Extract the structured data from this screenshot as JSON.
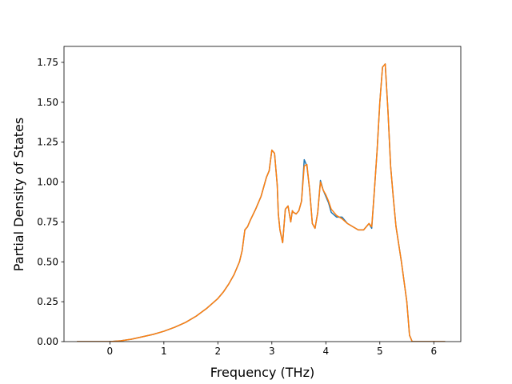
{
  "chart_data": {
    "type": "line",
    "title": "",
    "xlabel": "Frequency (THz)",
    "ylabel": "Partial Density of States",
    "xlim": [
      -0.85,
      6.5
    ],
    "ylim": [
      0.0,
      1.85
    ],
    "xticks": [
      0,
      1,
      2,
      3,
      4,
      5,
      6
    ],
    "xtick_labels": [
      "0",
      "1",
      "2",
      "3",
      "4",
      "5",
      "6"
    ],
    "yticks": [
      0.0,
      0.25,
      0.5,
      0.75,
      1.0,
      1.25,
      1.5,
      1.75
    ],
    "ytick_labels": [
      "0.00",
      "0.25",
      "0.50",
      "0.75",
      "1.00",
      "1.25",
      "1.50",
      "1.75"
    ],
    "grid": false,
    "legend": "none",
    "series": [
      {
        "color": "#1f77b4",
        "x": [
          -0.6,
          -0.3,
          0,
          0.2,
          0.4,
          0.6,
          0.8,
          1.0,
          1.2,
          1.4,
          1.6,
          1.8,
          2.0,
          2.1,
          2.2,
          2.3,
          2.4,
          2.45,
          2.5,
          2.55,
          2.6,
          2.7,
          2.8,
          2.9,
          2.95,
          3.0,
          3.05,
          3.1,
          3.12,
          3.15,
          3.2,
          3.25,
          3.3,
          3.35,
          3.38,
          3.4,
          3.45,
          3.5,
          3.55,
          3.6,
          3.65,
          3.7,
          3.75,
          3.8,
          3.85,
          3.9,
          3.95,
          4.0,
          4.05,
          4.1,
          4.2,
          4.3,
          4.4,
          4.5,
          4.6,
          4.7,
          4.8,
          4.85,
          4.9,
          4.95,
          5.0,
          5.05,
          5.1,
          5.15,
          5.2,
          5.25,
          5.3,
          5.4,
          5.5,
          5.55,
          5.6,
          5.65,
          5.7,
          6.2
        ],
        "y": [
          0.0,
          0.0,
          0.0,
          0.005,
          0.015,
          0.03,
          0.045,
          0.065,
          0.09,
          0.12,
          0.16,
          0.21,
          0.27,
          0.31,
          0.36,
          0.42,
          0.5,
          0.57,
          0.7,
          0.72,
          0.76,
          0.83,
          0.91,
          1.03,
          1.07,
          1.2,
          1.18,
          0.98,
          0.8,
          0.7,
          0.62,
          0.83,
          0.85,
          0.75,
          0.82,
          0.81,
          0.8,
          0.82,
          0.88,
          1.14,
          1.1,
          0.95,
          0.74,
          0.71,
          0.81,
          1.01,
          0.95,
          0.91,
          0.87,
          0.81,
          0.78,
          0.78,
          0.74,
          0.72,
          0.7,
          0.7,
          0.74,
          0.71,
          0.95,
          1.2,
          1.5,
          1.72,
          1.74,
          1.45,
          1.1,
          0.9,
          0.72,
          0.5,
          0.25,
          0.04,
          0.0,
          0.0,
          0.0,
          0.0
        ]
      },
      {
        "color": "#ff7f0e",
        "x": [
          -0.6,
          -0.3,
          0,
          0.2,
          0.4,
          0.6,
          0.8,
          1.0,
          1.2,
          1.4,
          1.6,
          1.8,
          2.0,
          2.1,
          2.2,
          2.3,
          2.4,
          2.45,
          2.5,
          2.55,
          2.6,
          2.7,
          2.8,
          2.9,
          2.95,
          3.0,
          3.05,
          3.1,
          3.12,
          3.15,
          3.2,
          3.25,
          3.3,
          3.35,
          3.38,
          3.4,
          3.45,
          3.5,
          3.55,
          3.6,
          3.65,
          3.7,
          3.75,
          3.8,
          3.85,
          3.9,
          3.95,
          4.0,
          4.05,
          4.1,
          4.2,
          4.3,
          4.4,
          4.5,
          4.6,
          4.7,
          4.8,
          4.85,
          4.9,
          4.95,
          5.0,
          5.05,
          5.1,
          5.15,
          5.2,
          5.25,
          5.3,
          5.4,
          5.5,
          5.55,
          5.6,
          5.65,
          5.7,
          6.2
        ],
        "y": [
          0.0,
          0.0,
          0.0,
          0.005,
          0.015,
          0.03,
          0.045,
          0.065,
          0.09,
          0.12,
          0.16,
          0.21,
          0.27,
          0.31,
          0.36,
          0.42,
          0.5,
          0.57,
          0.7,
          0.72,
          0.76,
          0.83,
          0.91,
          1.03,
          1.07,
          1.2,
          1.18,
          0.98,
          0.8,
          0.7,
          0.62,
          0.83,
          0.85,
          0.75,
          0.82,
          0.81,
          0.8,
          0.82,
          0.88,
          1.1,
          1.11,
          0.95,
          0.74,
          0.71,
          0.81,
          1.0,
          0.95,
          0.92,
          0.88,
          0.83,
          0.79,
          0.77,
          0.74,
          0.72,
          0.7,
          0.7,
          0.74,
          0.72,
          0.95,
          1.2,
          1.5,
          1.72,
          1.74,
          1.45,
          1.1,
          0.9,
          0.72,
          0.5,
          0.25,
          0.04,
          0.0,
          0.0,
          0.0,
          0.0
        ]
      }
    ]
  }
}
